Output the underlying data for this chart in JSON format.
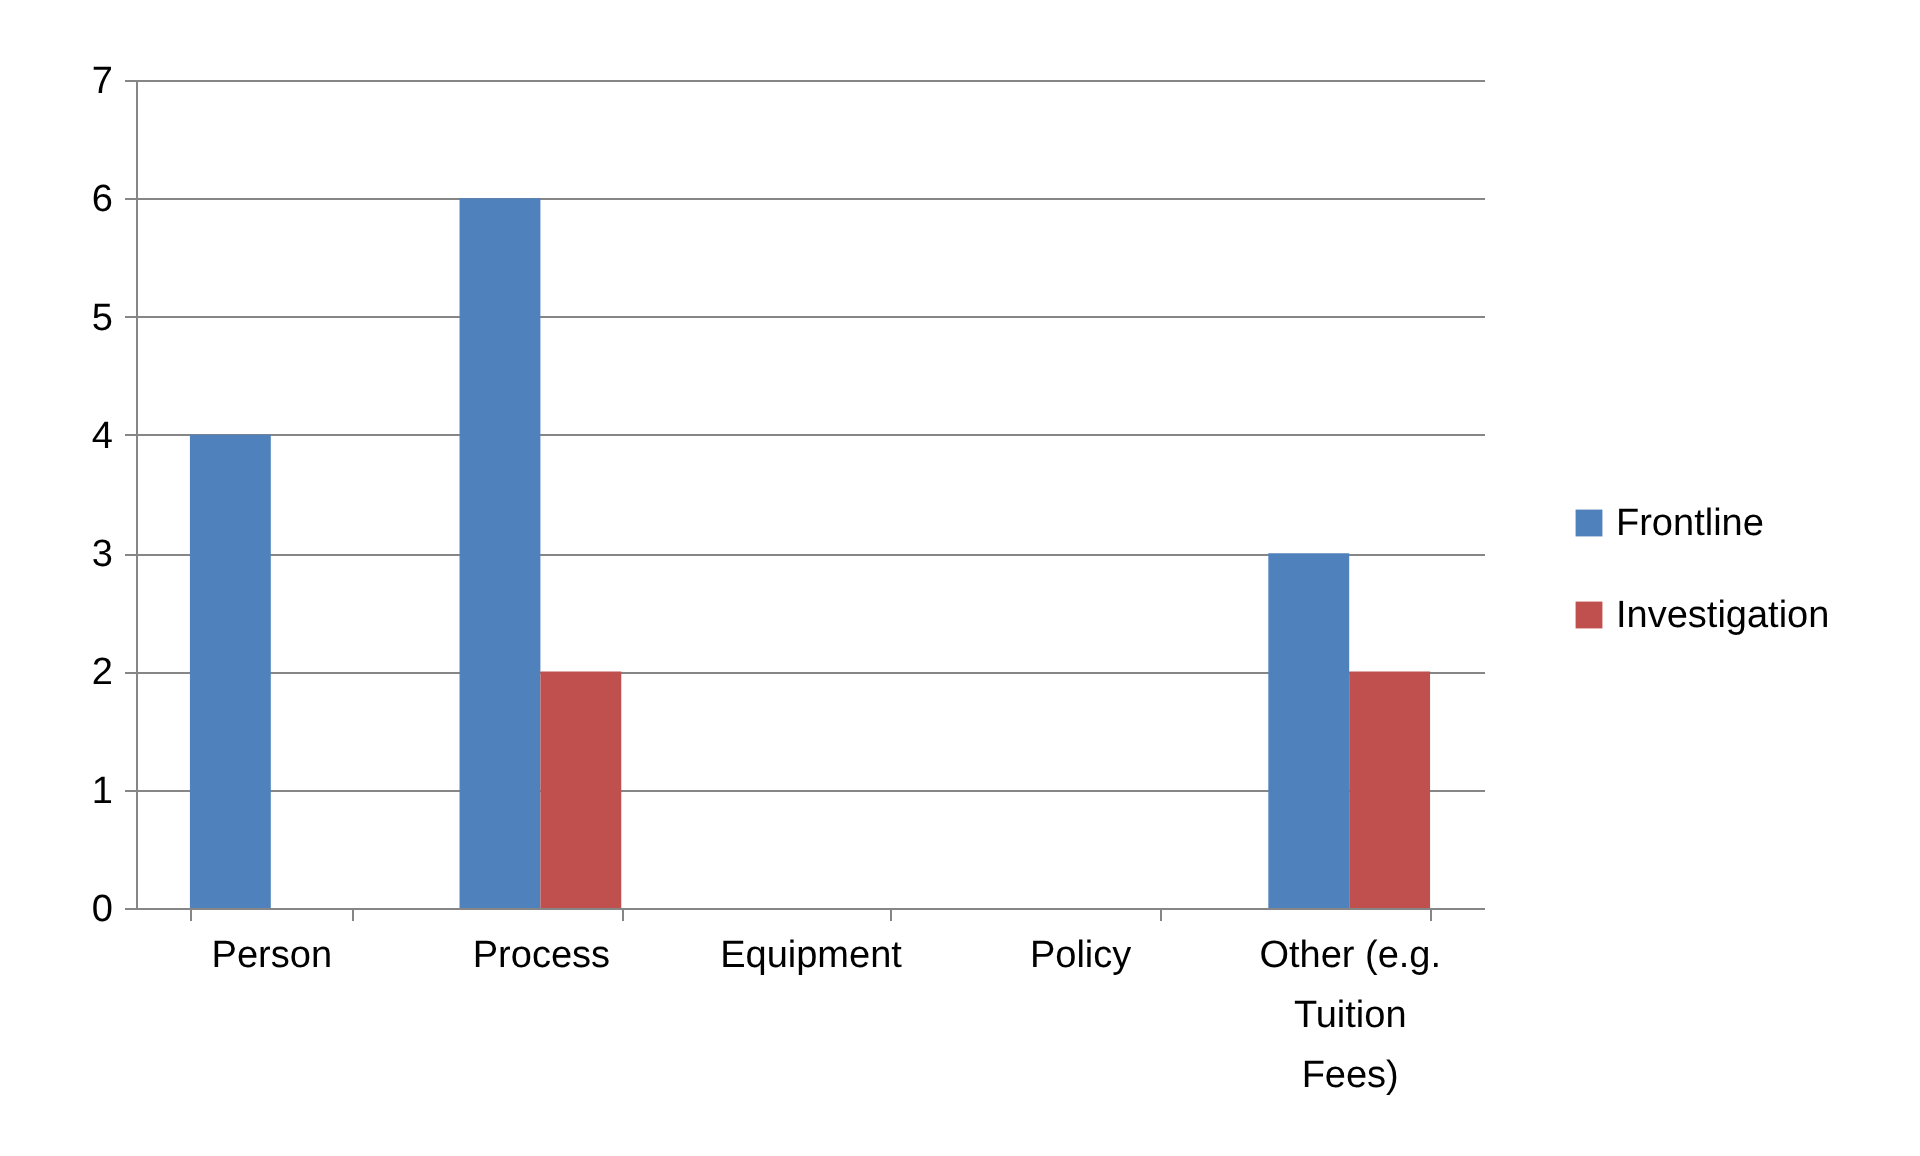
{
  "chart_data": {
    "type": "bar",
    "categories": [
      "Person",
      "Process",
      "Equipment",
      "Policy",
      "Other (e.g. Tuition Fees)"
    ],
    "series": [
      {
        "name": "Frontline",
        "color": "#4f81bd",
        "values": [
          4,
          6,
          0,
          0,
          3
        ]
      },
      {
        "name": "Investigation",
        "color": "#c0504d",
        "values": [
          0,
          2,
          0,
          0,
          2
        ]
      }
    ],
    "ylim": [
      0,
      7
    ],
    "yticks": [
      0,
      1,
      2,
      3,
      4,
      5,
      6,
      7
    ],
    "grid": "y",
    "legend": "right"
  }
}
